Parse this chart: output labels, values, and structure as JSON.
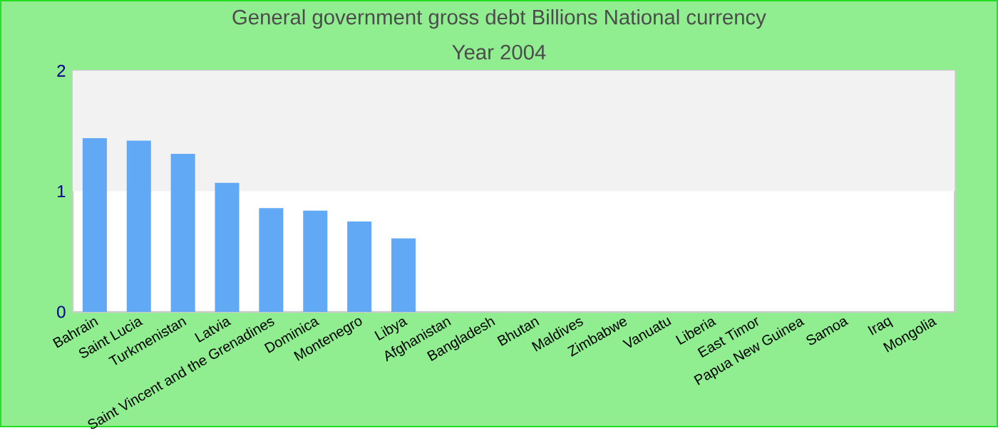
{
  "chart_data": {
    "type": "bar",
    "title": "General government gross debt Billions National currency",
    "subtitle": "Year 2004",
    "categories": [
      "Bahrain",
      "Saint Lucia",
      "Turkmenistan",
      "Latvia",
      "Saint Vincent and the Grenadines",
      "Dominica",
      "Montenegro",
      "Libya",
      "Afghanistan",
      "Bangladesh",
      "Bhutan",
      "Maldives",
      "Zimbabwe",
      "Vanuatu",
      "Liberia",
      "East Timor",
      "Papua New Guinea",
      "Samoa",
      "Iraq",
      "Mongolia"
    ],
    "values": [
      1.44,
      1.42,
      1.31,
      1.07,
      0.86,
      0.84,
      0.75,
      0.61,
      null,
      null,
      null,
      null,
      null,
      null,
      null,
      null,
      null,
      null,
      null,
      null
    ],
    "color": "#61a8f5",
    "ylim": [
      0,
      2
    ],
    "yticks": [
      0,
      1,
      2
    ],
    "bands": [
      {
        "axis": "y",
        "from": 1,
        "to": 2,
        "color": "#f2f2f2"
      }
    ],
    "grid": false
  }
}
